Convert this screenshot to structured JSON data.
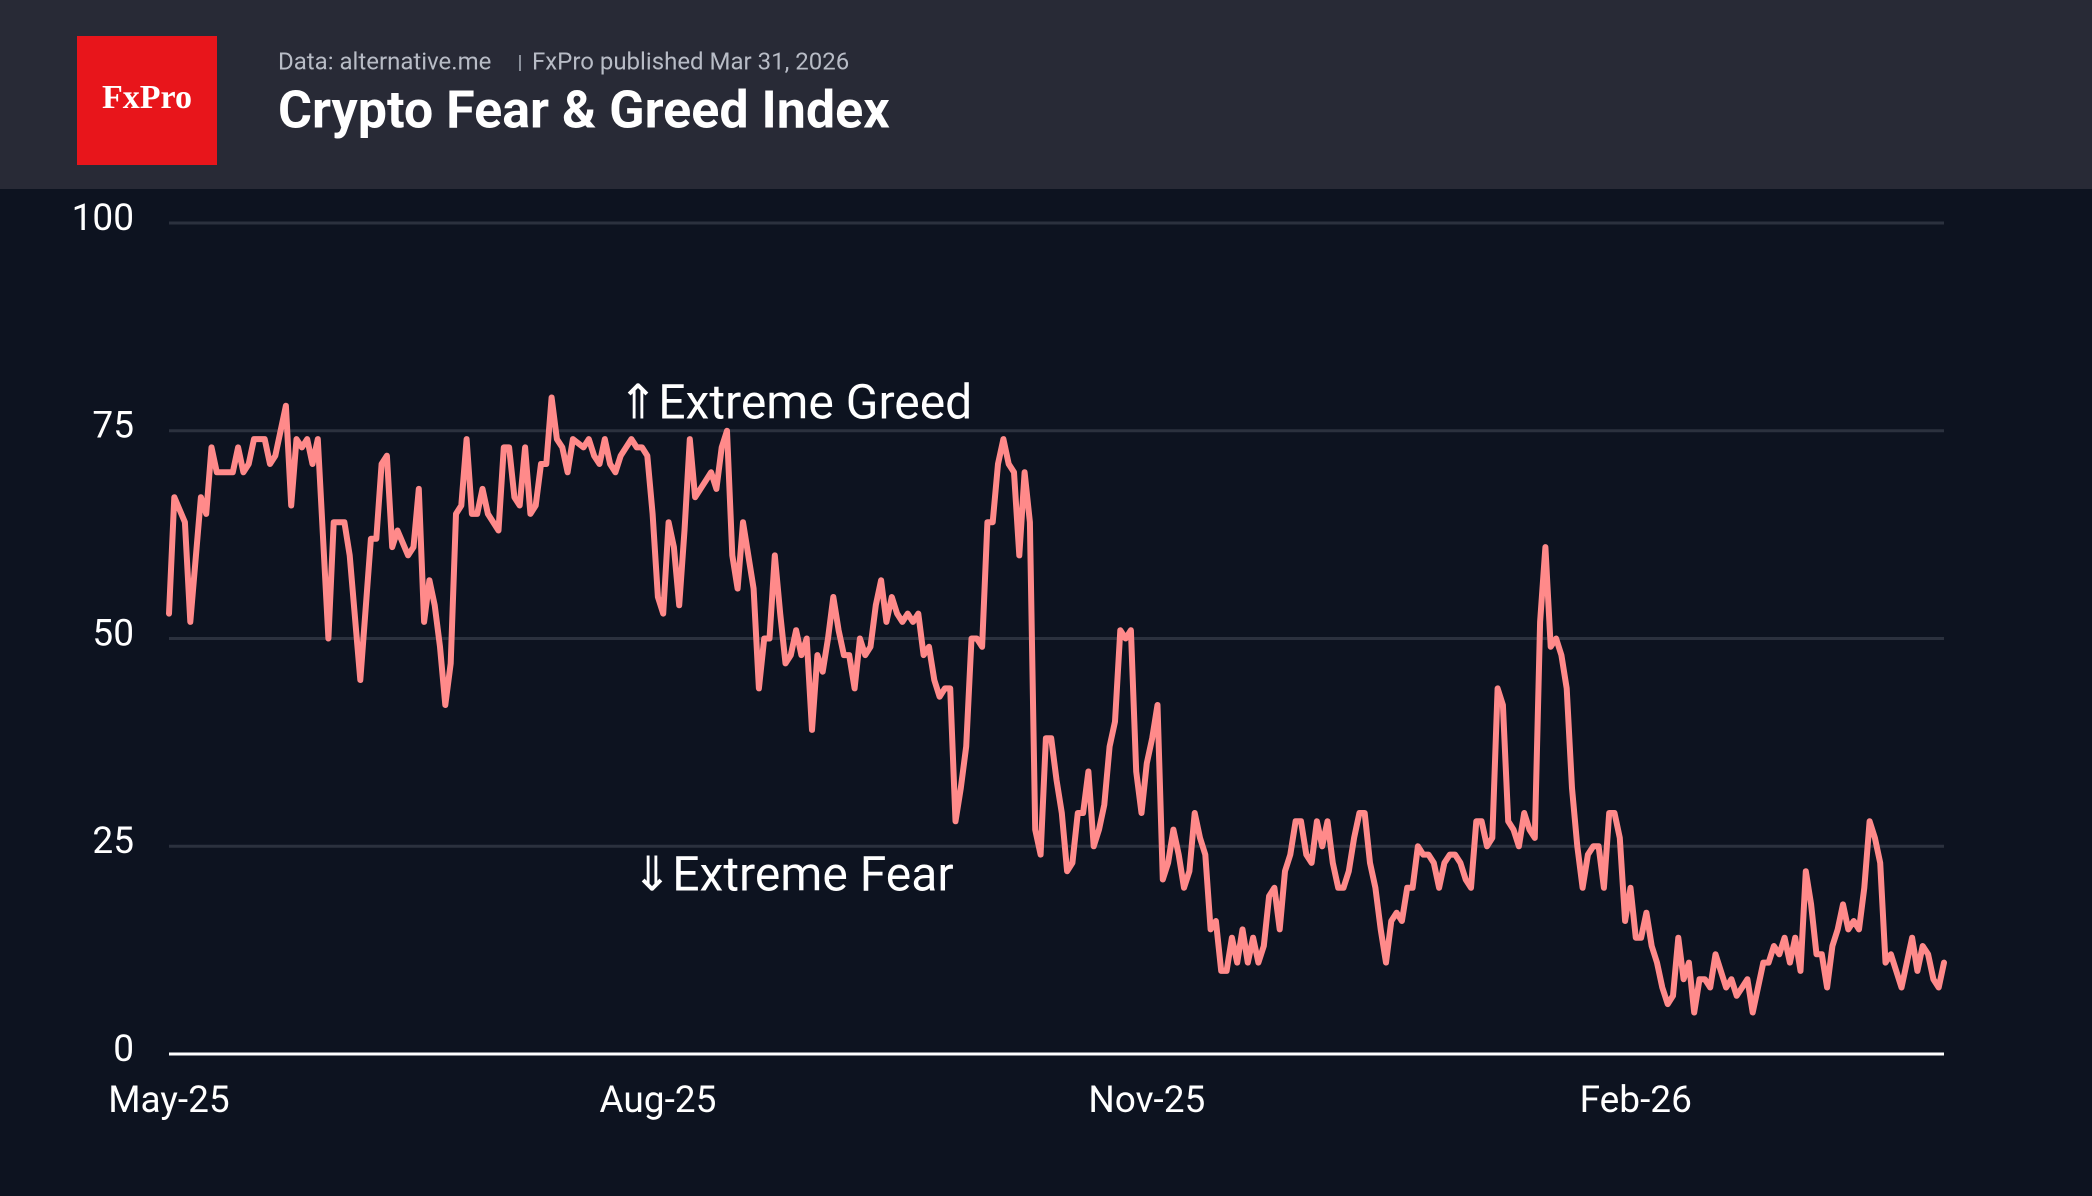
{
  "header": {
    "logo": "FxPro",
    "source": "Data: alternative.me",
    "published": "FxPro published Mar 31, 2026"
  },
  "chart_data": {
    "type": "line",
    "title": "Crypto Fear & Greed Index",
    "color": "#ff8a8a",
    "annotations": [
      "⇑Extreme Greed",
      "⇓Extreme Fear"
    ],
    "xlim": [
      0,
      334
    ],
    "ylim": [
      0,
      100
    ],
    "yticks": [
      0,
      25,
      50,
      75,
      100
    ],
    "grid": true,
    "xticks": [
      {
        "value": 0,
        "label": "May-25"
      },
      {
        "value": 92,
        "label": "Aug-25"
      },
      {
        "value": 184,
        "label": "Nov-25"
      },
      {
        "value": 276,
        "label": "Feb-26"
      }
    ],
    "x": [
      0,
      1,
      3,
      4,
      6,
      7,
      8,
      9,
      12,
      13,
      14,
      15,
      16,
      18,
      19,
      20,
      22,
      23,
      24,
      25,
      26,
      27,
      28,
      30,
      31,
      33,
      34,
      36,
      38,
      39,
      40,
      41,
      42,
      43,
      45,
      46,
      47,
      48,
      49,
      50,
      51,
      52,
      53,
      54,
      55,
      56,
      57,
      58,
      59,
      60,
      62,
      63,
      64,
      65,
      66,
      67,
      68,
      69,
      70,
      71,
      72,
      73,
      74,
      75,
      76,
      78,
      79,
      80,
      81,
      82,
      83,
      84,
      85,
      87,
      88,
      89,
      90,
      91,
      92,
      93,
      94,
      95,
      96,
      97,
      98,
      99,
      101,
      102,
      103,
      104,
      105,
      106,
      107,
      108,
      109,
      110,
      111,
      112,
      113,
      114,
      115,
      116,
      117,
      118,
      119,
      120,
      121,
      122,
      123,
      124,
      125,
      126,
      127,
      128,
      129,
      130,
      131,
      132,
      133,
      134,
      135,
      136,
      137,
      138,
      139,
      140,
      141,
      142,
      143,
      144,
      145,
      146,
      147,
      148,
      149,
      150,
      151,
      152,
      153,
      154,
      155,
      156,
      157,
      158,
      159,
      160,
      161,
      162,
      163,
      164,
      165,
      166,
      167,
      168,
      169,
      170,
      171,
      172,
      173,
      174,
      175,
      176,
      177,
      178,
      179,
      180,
      181,
      182,
      183,
      184,
      185,
      186,
      187,
      188,
      189,
      190,
      191,
      192,
      193,
      194,
      195,
      196,
      197,
      198,
      199,
      200,
      201,
      202,
      203,
      204,
      205,
      206,
      207,
      208,
      209,
      210,
      211,
      212,
      213,
      214,
      215,
      216,
      217,
      218,
      219,
      220,
      221,
      222,
      223,
      224,
      225,
      226,
      227,
      228,
      229,
      230,
      231,
      232,
      233,
      234,
      235,
      236,
      237,
      238,
      239,
      240,
      241,
      242,
      243,
      244,
      245,
      246,
      247,
      248,
      249,
      250,
      251,
      252,
      253,
      254,
      255,
      256,
      257,
      258,
      259,
      260,
      261,
      262,
      263,
      264,
      265,
      266,
      267,
      268,
      269,
      270,
      271,
      272,
      273,
      274,
      275,
      276,
      277,
      278,
      279,
      280,
      281,
      282,
      283,
      284,
      285,
      286,
      287,
      288,
      289,
      290,
      291,
      292,
      293,
      294,
      295,
      296,
      297,
      298,
      299,
      300,
      301,
      302,
      303,
      304,
      305,
      306,
      307,
      308,
      309,
      310,
      311,
      312,
      313,
      314,
      315,
      316,
      317,
      318,
      319,
      320,
      321,
      322,
      323,
      324,
      325,
      326,
      327,
      328,
      329,
      330,
      331,
      332,
      333,
      334
    ],
    "values": [
      53,
      67,
      64,
      52,
      67,
      65,
      73,
      70,
      70,
      73,
      70,
      71,
      74,
      74,
      71,
      72,
      78,
      66,
      74,
      73,
      74,
      71,
      74,
      50,
      64,
      64,
      60,
      45,
      62,
      62,
      71,
      72,
      61,
      63,
      60,
      61,
      68,
      52,
      57,
      54,
      49,
      42,
      47,
      65,
      66,
      74,
      65,
      65,
      68,
      65,
      63,
      73,
      73,
      67,
      66,
      73,
      65,
      66,
      71,
      71,
      79,
      74,
      73,
      70,
      74,
      73,
      74,
      72,
      71,
      74,
      71,
      70,
      72,
      74,
      73,
      73,
      72,
      65,
      55,
      53,
      64,
      61,
      54,
      63,
      74,
      67,
      69,
      70,
      68,
      73,
      75,
      60,
      56,
      64,
      60,
      56,
      44,
      50,
      50,
      60,
      53,
      47,
      48,
      51,
      48,
      50,
      39,
      48,
      46,
      50,
      55,
      51,
      48,
      48,
      44,
      50,
      48,
      49,
      54,
      57,
      52,
      55,
      53,
      52,
      53,
      52,
      53,
      48,
      49,
      45,
      43,
      44,
      44,
      28,
      32,
      37,
      50,
      50,
      49,
      64,
      64,
      71,
      74,
      71,
      70,
      60,
      70,
      64,
      27,
      24,
      38,
      38,
      33,
      29,
      22,
      23,
      29,
      29,
      34,
      25,
      27,
      30,
      37,
      40,
      51,
      50,
      51,
      34,
      29,
      35,
      38,
      42,
      21,
      23,
      27,
      24,
      20,
      22,
      29,
      26,
      24,
      15,
      16,
      10,
      10,
      14,
      11,
      15,
      11,
      14,
      11,
      13,
      19,
      20,
      15,
      22,
      24,
      28,
      28,
      24,
      23,
      28,
      25,
      28,
      23,
      20,
      20,
      22,
      26,
      29,
      29,
      23,
      20,
      15,
      11,
      16,
      17,
      16,
      20,
      20,
      25,
      24,
      24,
      23,
      20,
      23,
      24,
      24,
      23,
      21,
      20,
      28,
      28,
      25,
      26,
      44,
      42,
      28,
      27,
      25,
      29,
      27,
      26,
      52,
      61,
      49,
      50,
      48,
      44,
      32,
      25,
      20,
      24,
      25,
      25,
      20,
      29,
      29,
      26,
      16,
      20,
      14,
      14,
      17,
      13,
      11,
      8,
      6,
      7,
      14,
      9,
      11,
      5,
      9,
      9,
      8,
      12,
      10,
      8,
      9,
      7,
      8,
      9,
      5,
      8,
      11,
      11,
      13,
      12,
      14,
      11,
      14,
      10,
      22,
      18,
      12,
      12,
      8,
      13,
      15,
      18,
      15,
      16,
      15,
      20,
      28,
      26,
      23,
      11,
      12,
      10,
      8,
      11,
      14,
      10,
      13,
      12,
      9,
      8,
      11
    ]
  }
}
